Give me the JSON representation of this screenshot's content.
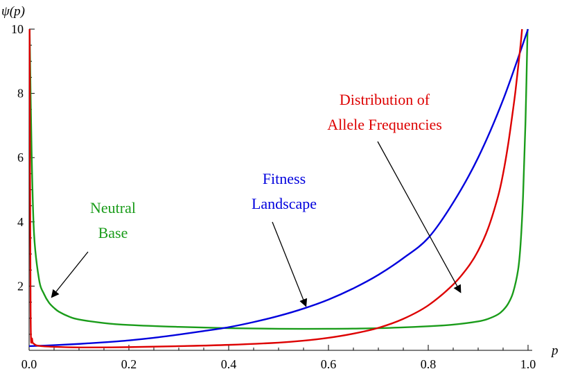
{
  "chart_data": {
    "type": "line",
    "xlabel": "p",
    "ylabel": "ψ(p)",
    "xlim": [
      0,
      1
    ],
    "ylim": [
      0,
      10
    ],
    "x_ticks": [
      "0.0",
      "0.2",
      "0.4",
      "0.6",
      "0.8",
      "1.0"
    ],
    "y_ticks": [
      "2",
      "4",
      "6",
      "8",
      "10"
    ],
    "grid": false,
    "series": [
      {
        "name": "Neutral Base",
        "color": "#1a9c1a",
        "x": [
          0.001,
          0.005,
          0.01,
          0.02,
          0.03,
          0.04,
          0.05,
          0.06,
          0.08,
          0.1,
          0.15,
          0.2,
          0.3,
          0.4,
          0.5,
          0.6,
          0.7,
          0.8,
          0.85,
          0.9,
          0.92,
          0.94,
          0.95,
          0.96,
          0.97,
          0.98,
          0.985,
          0.99,
          0.995,
          0.999
        ],
        "y": [
          10.0,
          6.2,
          3.6,
          2.2,
          1.75,
          1.48,
          1.32,
          1.2,
          1.05,
          0.96,
          0.85,
          0.79,
          0.73,
          0.69,
          0.67,
          0.67,
          0.69,
          0.75,
          0.8,
          0.9,
          0.98,
          1.12,
          1.25,
          1.45,
          1.8,
          2.5,
          3.3,
          4.8,
          7.2,
          10.0
        ]
      },
      {
        "name": "Fitness Landscape",
        "color": "#0000dd",
        "x": [
          0.0,
          0.05,
          0.1,
          0.15,
          0.2,
          0.25,
          0.3,
          0.35,
          0.4,
          0.45,
          0.5,
          0.55,
          0.6,
          0.65,
          0.7,
          0.75,
          0.8,
          0.85,
          0.9,
          0.95,
          1.0
        ],
        "y": [
          0.13,
          0.16,
          0.2,
          0.25,
          0.31,
          0.39,
          0.49,
          0.6,
          0.72,
          0.88,
          1.07,
          1.3,
          1.58,
          1.93,
          2.35,
          2.87,
          3.5,
          4.6,
          6.0,
          7.8,
          10.0
        ]
      },
      {
        "name": "Distribution of Allele Frequencies",
        "color": "#dd0000",
        "x": [
          0.001,
          0.003,
          0.006,
          0.01,
          0.02,
          0.05,
          0.1,
          0.2,
          0.3,
          0.4,
          0.5,
          0.55,
          0.6,
          0.65,
          0.7,
          0.75,
          0.8,
          0.85,
          0.88,
          0.9,
          0.92,
          0.94,
          0.95,
          0.96,
          0.97,
          0.975,
          0.98,
          0.985,
          0.988
        ],
        "y": [
          10.0,
          1.2,
          0.35,
          0.2,
          0.14,
          0.11,
          0.09,
          0.1,
          0.13,
          0.17,
          0.24,
          0.3,
          0.39,
          0.52,
          0.7,
          0.98,
          1.4,
          2.05,
          2.6,
          3.1,
          3.8,
          4.8,
          5.5,
          6.4,
          7.5,
          8.1,
          8.8,
          9.5,
          10.0
        ]
      }
    ],
    "annotations": [
      {
        "lines": [
          "Neutral",
          "Base"
        ],
        "color": "#1a9c1a",
        "arrow_to": [
          0.045,
          1.65
        ]
      },
      {
        "lines": [
          "Fitness",
          "Landscape"
        ],
        "color": "#0000dd",
        "arrow_to": [
          0.555,
          1.37
        ]
      },
      {
        "lines": [
          "Distribution of",
          "Allele Frequencies"
        ],
        "color": "#dd0000",
        "arrow_to": [
          0.865,
          1.8
        ]
      }
    ]
  }
}
